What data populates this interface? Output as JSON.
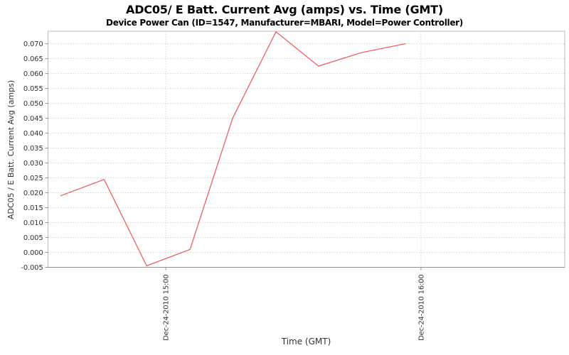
{
  "chart": {
    "title": "ADC05/ E Batt. Current Avg (amps) vs. Time (GMT)",
    "subtitle": "Device Power Can (ID=1547, Manufacturer=MBARI, Model=Power Controller)",
    "chart_data": {
      "type": "line",
      "title": "ADC05/ E Batt. Current Avg (amps) vs. Time (GMT)",
      "subtitle": "Device Power Can (ID=1547, Manufacturer=MBARI, Model=Power Controller)",
      "xlabel": "Time (GMT)",
      "ylabel": "ADC05 / E Batt. Current Avg (amps)",
      "legend": "none",
      "grid": true,
      "series": [
        {
          "color": "#ee5f5f",
          "points": [
            {
              "time": "Dec-24-2010 14:35",
              "minutes": 875.3,
              "amps": 0.019
            },
            {
              "time": "Dec-24-2010 14:45",
              "minutes": 885.5,
              "amps": 0.0245
            },
            {
              "time": "Dec-24-2010 14:55",
              "minutes": 895.5,
              "amps": -0.0045
            },
            {
              "time": "Dec-24-2010 15:06",
              "minutes": 905.7,
              "amps": 0.001
            },
            {
              "time": "Dec-24-2010 15:16",
              "minutes": 915.7,
              "amps": 0.045
            },
            {
              "time": "Dec-24-2010 15:26",
              "minutes": 925.9,
              "amps": 0.074
            },
            {
              "time": "Dec-24-2010 15:36",
              "minutes": 935.9,
              "amps": 0.0625
            },
            {
              "time": "Dec-24-2010 15:46",
              "minutes": 945.9,
              "amps": 0.067
            },
            {
              "time": "Dec-24-2010 15:56",
              "minutes": 956.3,
              "amps": 0.07
            }
          ]
        }
      ],
      "x_axis": {
        "ticks": [
          {
            "label": "Dec-24-2010 15:00",
            "minutes": 900
          },
          {
            "label": "Dec-24-2010 16:00",
            "minutes": 960
          }
        ],
        "range_minutes": [
          872.3,
          993.8
        ]
      },
      "y_axis": {
        "ticks": [
          {
            "label": "-0.005",
            "value": -0.005
          },
          {
            "label": "0.000",
            "value": 0.0
          },
          {
            "label": "0.005",
            "value": 0.005
          },
          {
            "label": "0.010",
            "value": 0.01
          },
          {
            "label": "0.015",
            "value": 0.015
          },
          {
            "label": "0.020",
            "value": 0.02
          },
          {
            "label": "0.025",
            "value": 0.025
          },
          {
            "label": "0.030",
            "value": 0.03
          },
          {
            "label": "0.035",
            "value": 0.035
          },
          {
            "label": "0.040",
            "value": 0.04
          },
          {
            "label": "0.045",
            "value": 0.045
          },
          {
            "label": "0.050",
            "value": 0.05
          },
          {
            "label": "0.055",
            "value": 0.055
          },
          {
            "label": "0.060",
            "value": 0.06
          },
          {
            "label": "0.065",
            "value": 0.065
          },
          {
            "label": "0.070",
            "value": 0.07
          }
        ],
        "range": [
          -0.005,
          0.0742
        ]
      },
      "colors": {
        "line": "#ee5f5f",
        "grid": "#d4d4d4",
        "border": "#bdbdbd",
        "axis": "#8f8f8f",
        "tick_text": "#333333",
        "background": "#ffffff"
      }
    }
  }
}
